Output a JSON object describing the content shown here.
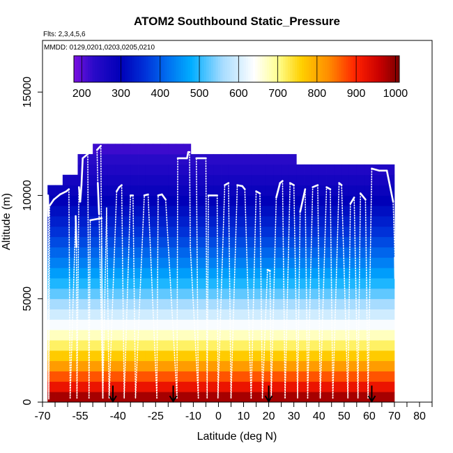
{
  "chart_data": {
    "type": "heatmap",
    "title": "ATOM2 Southbound Static_Pressure",
    "subtitle": "Flts: 2,3,4,5,6",
    "annotation": "MMDD: 0129,0201,0203,0205,0210",
    "xlabel": "Latitude (deg N)",
    "ylabel": "Altitude (m)",
    "xlim": [
      -70,
      85
    ],
    "ylim": [
      0,
      17500
    ],
    "x_ticks": [
      -70,
      -65,
      -60,
      -55,
      -50,
      -45,
      -40,
      -35,
      -30,
      -25,
      -20,
      -15,
      -10,
      -5,
      0,
      5,
      10,
      15,
      20,
      25,
      30,
      35,
      40,
      45,
      50,
      55,
      60,
      65,
      70,
      75,
      80,
      85
    ],
    "x_tick_labels": [
      "-70",
      "-55",
      "-40",
      "-25",
      "-10",
      "0",
      "10",
      "20",
      "30",
      "40",
      "50",
      "60",
      "70",
      "80"
    ],
    "y_ticks": [
      0,
      5000,
      10000,
      15000
    ],
    "y_tick_labels": [
      "0",
      "5000",
      "10000",
      "15000"
    ],
    "colorbar": {
      "range": [
        180,
        1010
      ],
      "ticks": [
        200,
        300,
        400,
        500,
        600,
        700,
        800,
        900,
        1000
      ],
      "tick_labels": [
        "200",
        "300",
        "400",
        "500",
        "600",
        "700",
        "800",
        "900",
        "1000"
      ],
      "stops": [
        {
          "v": 180,
          "color": "#7B10E0"
        },
        {
          "v": 230,
          "color": "#2A0AC8"
        },
        {
          "v": 300,
          "color": "#0000B8"
        },
        {
          "v": 360,
          "color": "#0030D8"
        },
        {
          "v": 420,
          "color": "#0070F0"
        },
        {
          "v": 480,
          "color": "#00AEFF"
        },
        {
          "v": 560,
          "color": "#A8DCFF"
        },
        {
          "v": 640,
          "color": "#FFFFFF"
        },
        {
          "v": 700,
          "color": "#FFFF90"
        },
        {
          "v": 760,
          "color": "#FFD000"
        },
        {
          "v": 830,
          "color": "#FF8C00"
        },
        {
          "v": 900,
          "color": "#FF2000"
        },
        {
          "v": 960,
          "color": "#C80000"
        },
        {
          "v": 1010,
          "color": "#7A0000"
        }
      ]
    },
    "grid": {
      "lat_start": -68,
      "lat_end": 70,
      "lat_step": 3,
      "alt_step": 500,
      "column_tops": [
        {
          "lat_from": -68,
          "lat_to": -62,
          "alt_top": 10500
        },
        {
          "lat_from": -62,
          "lat_to": -56,
          "alt_top": 11000
        },
        {
          "lat_from": -56,
          "lat_to": -50,
          "alt_top": 12000
        },
        {
          "lat_from": -50,
          "lat_to": -12,
          "alt_top": 12500
        },
        {
          "lat_from": -12,
          "lat_to": 30,
          "alt_top": 12000
        },
        {
          "lat_from": 30,
          "lat_to": 70,
          "alt_top": 11500
        }
      ]
    },
    "pressure_profile": {
      "surface_hpa": 1013,
      "scale_height_m": 8000,
      "note_lower_bound_hpa": 180
    },
    "flight_track": {
      "color": "#FFFFFF",
      "points": [
        [
          -67.8,
          10000
        ],
        [
          -67.6,
          9000
        ],
        [
          -67.5,
          150
        ],
        [
          -67.2,
          9500
        ],
        [
          -65.5,
          9800
        ],
        [
          -63,
          10050
        ],
        [
          -60.5,
          10200
        ],
        [
          -59.5,
          10300
        ],
        [
          -59,
          200
        ],
        [
          -56.8,
          9000
        ],
        [
          -56.5,
          7500
        ],
        [
          -56.3,
          200
        ],
        [
          -55.5,
          10400
        ],
        [
          -55,
          9700
        ],
        [
          -54.5,
          10500
        ],
        [
          -54,
          11800
        ],
        [
          -52,
          12000
        ],
        [
          -51.5,
          200
        ],
        [
          -51,
          8800
        ],
        [
          -46.5,
          8900
        ],
        [
          -46,
          200
        ],
        [
          -47.5,
          9100
        ],
        [
          -48,
          10600
        ],
        [
          -48.3,
          12200
        ],
        [
          -46.8,
          12400
        ],
        [
          -46.5,
          7500
        ],
        [
          -46,
          200
        ],
        [
          -44.5,
          9400
        ],
        [
          -43.5,
          200
        ],
        [
          -40.5,
          10200
        ],
        [
          -39.5,
          10400
        ],
        [
          -38.5,
          10500
        ],
        [
          -37.5,
          200
        ],
        [
          -35,
          10000
        ],
        [
          -34,
          10000
        ],
        [
          -33,
          200
        ],
        [
          -29.5,
          10000
        ],
        [
          -28,
          10050
        ],
        [
          -24.5,
          200
        ],
        [
          -24,
          10000
        ],
        [
          -22.5,
          10050
        ],
        [
          -21,
          9800
        ],
        [
          -16.5,
          200
        ],
        [
          -16.2,
          11800
        ],
        [
          -12.5,
          11800
        ],
        [
          -12,
          12100
        ],
        [
          -11.5,
          12100
        ],
        [
          -11.2,
          7500
        ],
        [
          -8,
          200
        ],
        [
          -8.8,
          11800
        ],
        [
          -5,
          11800
        ],
        [
          -4.5,
          200
        ],
        [
          -4,
          10000
        ],
        [
          -0.5,
          10000
        ],
        [
          -0.2,
          200
        ],
        [
          2.5,
          10500
        ],
        [
          4,
          10600
        ],
        [
          5,
          200
        ],
        [
          7.5,
          10500
        ],
        [
          9.5,
          10450
        ],
        [
          10.5,
          10300
        ],
        [
          13,
          200
        ],
        [
          15,
          10200
        ],
        [
          16.5,
          10100
        ],
        [
          17.5,
          200
        ],
        [
          19.5,
          6400
        ],
        [
          20.5,
          6350
        ],
        [
          21,
          200
        ],
        [
          23,
          9900
        ],
        [
          24.5,
          10600
        ],
        [
          25.5,
          10700
        ],
        [
          26.5,
          200
        ],
        [
          28.5,
          10600
        ],
        [
          30,
          10500
        ],
        [
          31.5,
          200
        ],
        [
          32.5,
          9200
        ],
        [
          34.5,
          10300
        ],
        [
          35.5,
          200
        ],
        [
          37.5,
          10400
        ],
        [
          39.5,
          10500
        ],
        [
          40.5,
          200
        ],
        [
          43,
          10400
        ],
        [
          44.5,
          10300
        ],
        [
          45.5,
          200
        ],
        [
          48,
          10600
        ],
        [
          49,
          10500
        ],
        [
          51.5,
          200
        ],
        [
          52.5,
          9600
        ],
        [
          54,
          9900
        ],
        [
          55.5,
          200
        ],
        [
          56.5,
          10100
        ],
        [
          58.5,
          9800
        ],
        [
          59.5,
          200
        ],
        [
          61,
          11300
        ],
        [
          64,
          11200
        ],
        [
          67,
          11200
        ],
        [
          69.5,
          9700
        ],
        [
          70.2,
          7000
        ],
        [
          70.3,
          6000
        ]
      ]
    },
    "arrows_latitude": [
      -42,
      -18,
      20,
      61
    ]
  }
}
